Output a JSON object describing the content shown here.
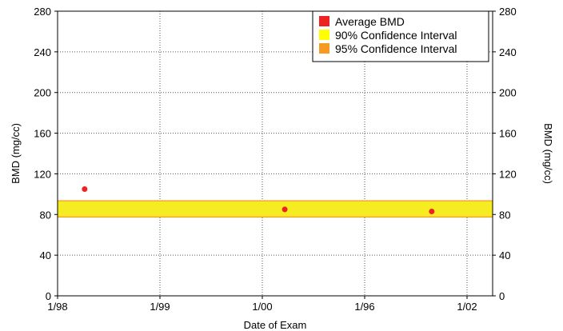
{
  "chart_data": {
    "type": "scatter",
    "xlabel": "Date of Exam",
    "ylabel": "BMD (mg/cc)",
    "ylabel_right": "BMD (mg/cc)",
    "x_ticks": [
      "1/98",
      "1/99",
      "1/00",
      "1/96",
      "1/02"
    ],
    "x_range_ticks": [
      0,
      4.5
    ],
    "ylim": [
      0,
      280
    ],
    "y_ticks": [
      0,
      40,
      80,
      120,
      160,
      200,
      240,
      280
    ],
    "grid": true,
    "legend_position": "top-right",
    "legend": [
      {
        "label": "Average BMD",
        "color": "#ee2222"
      },
      {
        "label": "90% Confidence Interval",
        "color": "#ffff00"
      },
      {
        "label": "95% Confidence Interval",
        "color": "#f59a23"
      }
    ],
    "bands": {
      "ci95": {
        "low": 77,
        "high": 94,
        "color": "#f59a23"
      },
      "ci90": {
        "low": 78,
        "high": 93,
        "color": "#f5ec22"
      }
    },
    "points": [
      {
        "x": 0.28,
        "y": 105
      },
      {
        "x": 2.35,
        "y": 85
      },
      {
        "x": 3.87,
        "y": 83
      }
    ],
    "point_color": "#ee2222"
  }
}
